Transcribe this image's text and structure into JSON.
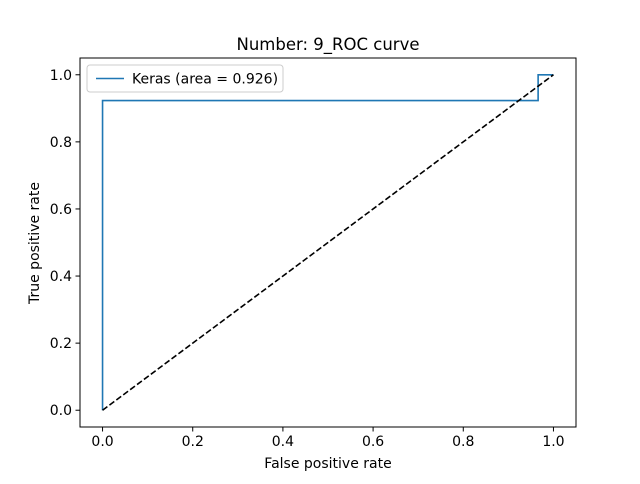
{
  "chart_data": {
    "type": "line",
    "title": "Number:  9_ROC curve",
    "xlabel": "False positive rate",
    "ylabel": "True positive rate",
    "xlim": [
      -0.05,
      1.05
    ],
    "ylim": [
      -0.05,
      1.05
    ],
    "xticks": [
      0.0,
      0.2,
      0.4,
      0.6,
      0.8,
      1.0
    ],
    "yticks": [
      0.0,
      0.2,
      0.4,
      0.6,
      0.8,
      1.0
    ],
    "xtick_labels": [
      "0.0",
      "0.2",
      "0.4",
      "0.6",
      "0.8",
      "1.0"
    ],
    "ytick_labels": [
      "0.0",
      "0.2",
      "0.4",
      "0.6",
      "0.8",
      "1.0"
    ],
    "grid": false,
    "legend_position": "upper-left",
    "series": [
      {
        "name": "Keras (area = 0.926)",
        "color": "#1f77b4",
        "style": "solid",
        "step": true,
        "x": [
          0.0,
          0.0,
          0.966,
          0.966,
          1.0
        ],
        "y": [
          0.0,
          0.923,
          0.923,
          1.0,
          1.0
        ]
      },
      {
        "color": "#000000",
        "style": "dashed",
        "x": [
          0.0,
          1.0
        ],
        "y": [
          0.0,
          1.0
        ]
      }
    ]
  }
}
